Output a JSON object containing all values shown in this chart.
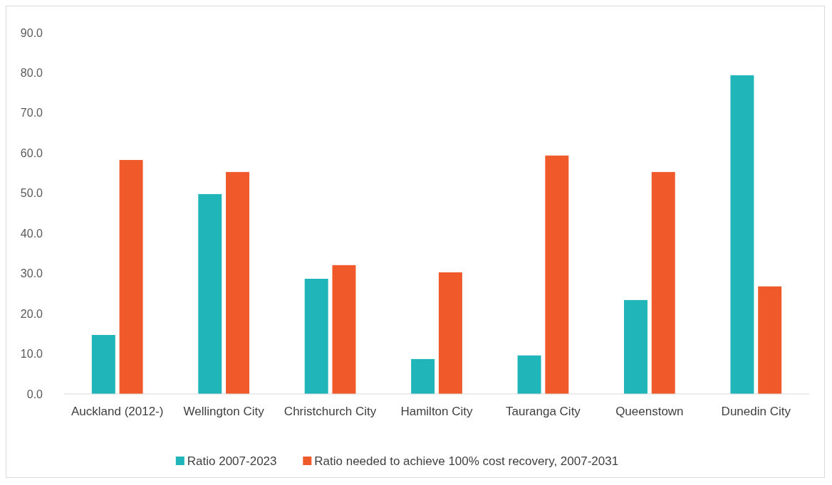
{
  "chart_data": {
    "type": "bar",
    "categories": [
      "Auckland (2012-)",
      "Wellington City",
      "Christchurch City",
      "Hamilton City",
      "Tauranga City",
      "Queenstown",
      "Dunedin City"
    ],
    "series": [
      {
        "name": "Ratio 2007-2023",
        "color": "#20b5b8",
        "values": [
          14.7,
          49.8,
          28.7,
          8.7,
          9.6,
          23.4,
          79.4
        ]
      },
      {
        "name": "Ratio needed to achieve 100% cost recovery, 2007-2031",
        "color": "#f05a2b",
        "values": [
          58.3,
          55.3,
          32.1,
          30.3,
          59.4,
          55.3,
          26.8
        ]
      }
    ],
    "ylim": [
      0,
      90
    ],
    "yticks": [
      {
        "value": 0,
        "label": "0.0"
      },
      {
        "value": 10,
        "label": "10.0"
      },
      {
        "value": 20,
        "label": "20.0"
      },
      {
        "value": 30,
        "label": "30.0"
      },
      {
        "value": 40,
        "label": "40.0"
      },
      {
        "value": 50,
        "label": "50.0"
      },
      {
        "value": 60,
        "label": "60.0"
      },
      {
        "value": 70,
        "label": "70.0"
      },
      {
        "value": 80,
        "label": "80.0"
      },
      {
        "value": 90,
        "label": "90.0"
      }
    ],
    "grid": false,
    "legend": "bottom"
  }
}
